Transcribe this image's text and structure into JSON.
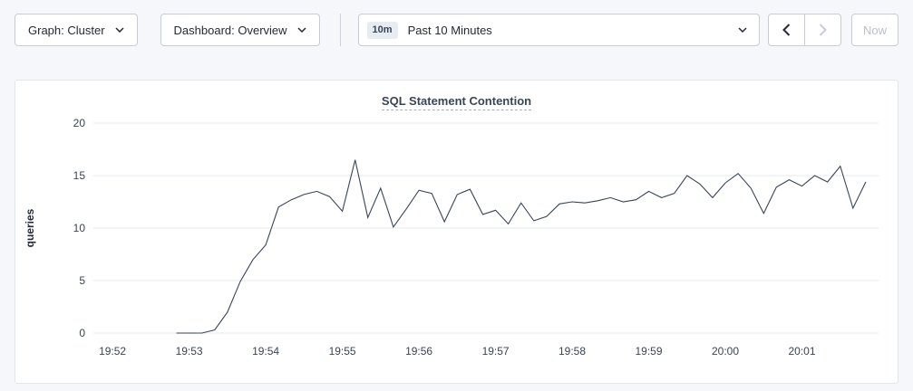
{
  "toolbar": {
    "graph_dropdown": {
      "text": "Graph: Cluster"
    },
    "dashboard_dropdown": {
      "text": "Dashboard: Overview"
    },
    "time_window": {
      "badge": "10m",
      "value": "Past 10 Minutes"
    },
    "now_button": "Now"
  },
  "colors": {
    "accent_line": "#394455",
    "grid": "#e7eaf1",
    "badge_bg": "#e7ecf3",
    "disabled": "#c9cdd6"
  },
  "chart_data": {
    "type": "line",
    "title": "SQL Statement Contention",
    "ylabel": "queries",
    "ylim": [
      0,
      20
    ],
    "yticks": [
      0,
      5,
      10,
      15,
      20
    ],
    "grid": "horizontal",
    "x_unit": "seconds since 19:52:00",
    "x_domain": [
      -15,
      600
    ],
    "xticks": [
      0,
      60,
      120,
      180,
      240,
      300,
      360,
      420,
      480,
      540
    ],
    "xtick_labels": [
      "19:52",
      "19:53",
      "19:54",
      "19:55",
      "19:56",
      "19:57",
      "19:58",
      "19:59",
      "20:00",
      "20:01"
    ],
    "series": [
      {
        "name": "queries",
        "color": "#394455",
        "x": [
          50,
          60,
          70,
          80,
          90,
          100,
          110,
          120,
          130,
          140,
          150,
          160,
          170,
          180,
          190,
          200,
          210,
          220,
          230,
          240,
          250,
          260,
          270,
          280,
          290,
          300,
          310,
          320,
          330,
          340,
          350,
          360,
          370,
          380,
          390,
          400,
          410,
          420,
          430,
          440,
          450,
          460,
          470,
          480,
          490,
          500,
          510,
          520,
          530,
          540,
          550,
          560,
          570,
          580,
          590
        ],
        "values": [
          0,
          0,
          0,
          0.3,
          2.0,
          4.9,
          7.0,
          8.4,
          12.0,
          12.7,
          13.2,
          13.5,
          13.0,
          11.6,
          16.5,
          11.0,
          13.8,
          10.1,
          11.8,
          13.6,
          13.3,
          10.6,
          13.2,
          13.7,
          11.3,
          11.7,
          10.4,
          12.4,
          10.7,
          11.1,
          12.3,
          12.5,
          12.4,
          12.6,
          12.9,
          12.5,
          12.7,
          13.5,
          12.9,
          13.3,
          15.0,
          14.2,
          12.9,
          14.3,
          15.2,
          13.8,
          11.4,
          13.9,
          14.6,
          14.0,
          15.0,
          14.4,
          15.9,
          11.9,
          14.4
        ]
      }
    ]
  }
}
